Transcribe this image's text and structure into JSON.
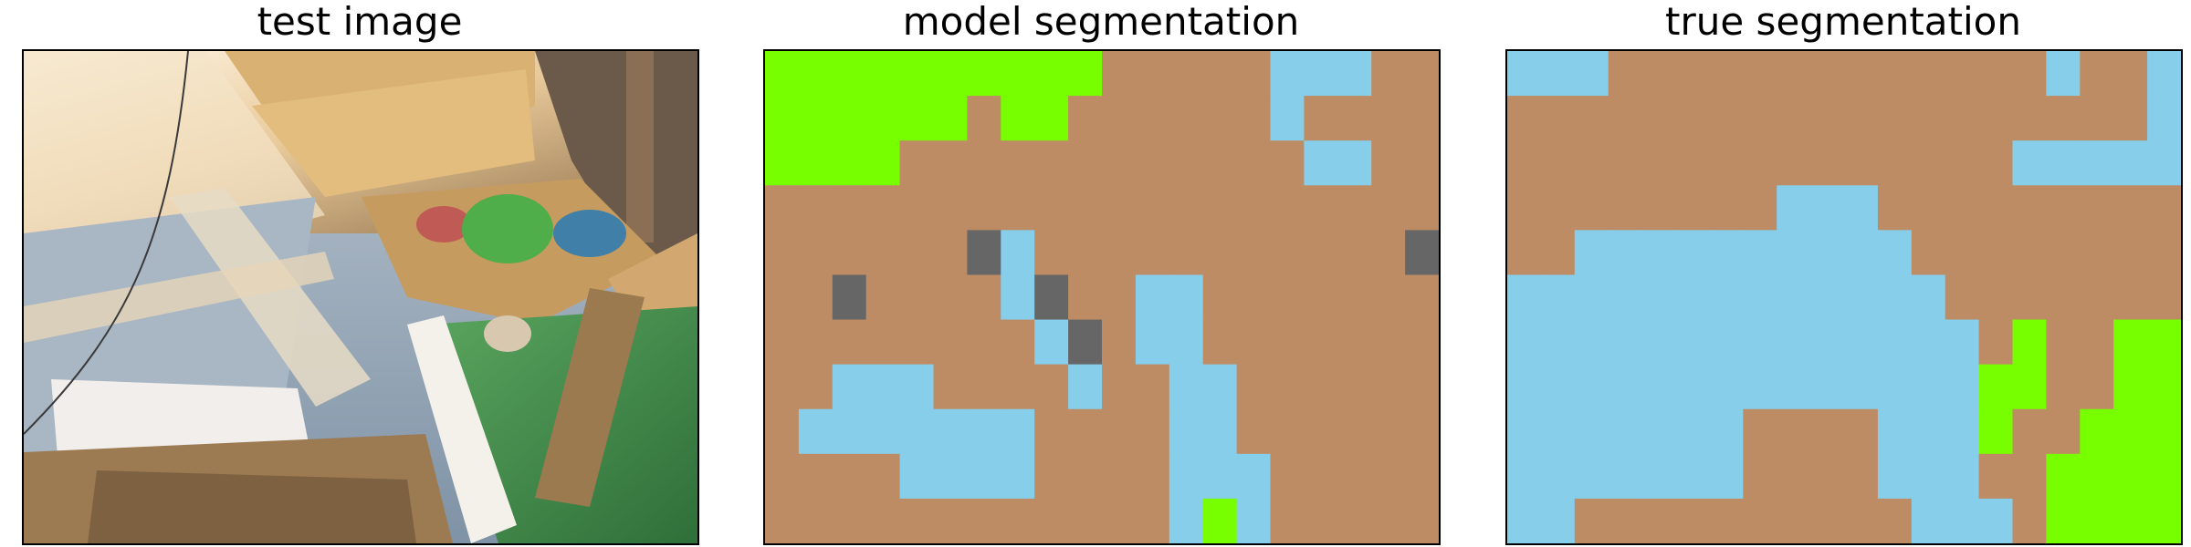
{
  "figure": {
    "panels": [
      {
        "title": "test image"
      },
      {
        "title": "model segmentation"
      },
      {
        "title": "true segmentation"
      }
    ]
  },
  "colors": {
    "green": "#77ff00",
    "brown": "#be8c64",
    "blue": "#87ceeb",
    "gray": "#666666",
    "photo_wood": "#c89a5c",
    "photo_floor": "#9aa8b8",
    "photo_grass": "#3f8a4a"
  },
  "legend_codes": {
    "G": "green",
    "B": "brown",
    "L": "blue",
    "D": "gray"
  },
  "model_segmentation": {
    "grid_cols": 20,
    "grid_rows": 11,
    "rows": [
      "GGGGGGGGGGBBBBBLLLBB",
      "GGGGGGBGGBBBBBBLBBBB",
      "GGGGBBBBBBBBBBBBLLBB",
      "BBBBBBBBBBBBBBBBBBBB",
      "BBBBBBDLBBBBBBBBBBBD",
      "BBDBBBBLDBBLLBBBBBBB",
      "BBBBBBBBLDBLLBBBBBBB",
      "BBLLLBBBBLBBLLBBBBBB",
      "BLLLLLLLBBBBLLBBBBBB",
      "BBBBLLLLBBBBLLLBBBBB",
      "BBBBBBBBBBBBLGLBBBBB"
    ]
  },
  "true_segmentation": {
    "grid_cols": 20,
    "grid_rows": 11,
    "rows": [
      "LLLBBBBBBBBBBBBBLBBL",
      "BBBBBBBBBBBBBBBBBBBL",
      "BBBBBBBBBBBBBBBLLLLL",
      "BBBBBBBBLLLBBBBBBBBB",
      "BBLLLLLLLLLLBBBBBBBB",
      "LLLLLLLLLLLLLBBBBBBB",
      "LLLLLLLLLLLLLLBGBBGG",
      "LLLLLLLLLLLLLLGGBBGG",
      "LLLLLLLBBBBLLLGBBGGG",
      "LLLLLLLBBBBLLLBBGGGG",
      "LLBBBBBBBBBBLLLBGGGG"
    ]
  }
}
